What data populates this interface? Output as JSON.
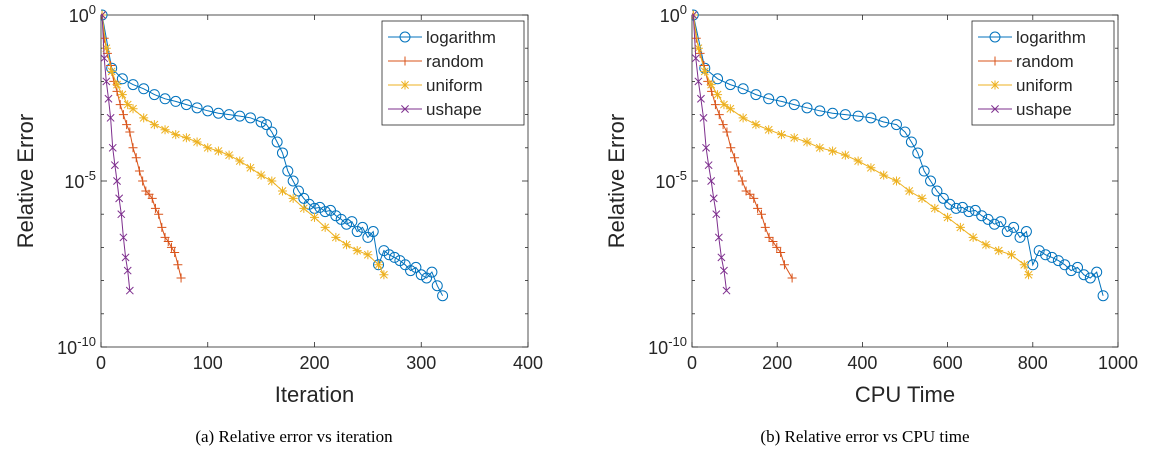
{
  "figure": {
    "captions": [
      "(a)  Relative error vs iteration",
      "(b)  Relative error vs CPU time"
    ]
  },
  "chart_data": [
    {
      "type": "line",
      "yscale": "log",
      "xlabel": "Iteration",
      "ylabel": "Relative Error",
      "xlim": [
        0,
        400
      ],
      "ylim": [
        1e-10,
        1
      ],
      "xticks": [
        "0",
        "100",
        "200",
        "300",
        "400"
      ],
      "ytick_values": [
        1e-10,
        1e-05,
        1
      ],
      "yticks": [
        {
          "base": "10",
          "exp": "-10"
        },
        {
          "base": "10",
          "exp": "-5"
        },
        {
          "base": "10",
          "exp": "0"
        }
      ],
      "grid": false,
      "legend_position": "top-right",
      "series": [
        {
          "name": "logarithm",
          "color": "#0072BD",
          "marker": "circle",
          "x": [
            1,
            10,
            20,
            30,
            40,
            50,
            60,
            70,
            80,
            90,
            100,
            110,
            120,
            130,
            140,
            150,
            155,
            160,
            165,
            170,
            175,
            180,
            185,
            190,
            195,
            200,
            205,
            210,
            215,
            220,
            225,
            230,
            235,
            240,
            245,
            250,
            255,
            260,
            265,
            270,
            275,
            280,
            285,
            290,
            295,
            300,
            305,
            310,
            315,
            320
          ],
          "y": [
            1,
            0.025,
            0.012,
            0.008,
            0.006,
            0.004,
            0.003,
            0.0025,
            0.002,
            0.0016,
            0.0013,
            0.0011,
            0.001,
            0.0009,
            0.0008,
            0.0006,
            0.0005,
            0.0003,
            0.00015,
            7e-05,
            2e-05,
            1e-05,
            5e-06,
            3e-06,
            2e-06,
            1.5e-06,
            1.6e-06,
            1.2e-06,
            1.3e-06,
            9e-07,
            7e-07,
            5e-07,
            6e-07,
            3e-07,
            4e-07,
            2e-07,
            3e-07,
            3e-08,
            8e-08,
            6e-08,
            5e-08,
            4e-08,
            3e-08,
            2e-08,
            2.5e-08,
            1.5e-08,
            1.2e-08,
            1.8e-08,
            7e-09,
            3.5e-09
          ]
        },
        {
          "name": "random",
          "color": "#D95319",
          "marker": "plus",
          "x": [
            1,
            3,
            6,
            9,
            12,
            15,
            18,
            21,
            24,
            27,
            30,
            33,
            36,
            39,
            42,
            45,
            48,
            51,
            54,
            57,
            60,
            63,
            66,
            69,
            72,
            75
          ],
          "y": [
            1,
            0.2,
            0.07,
            0.03,
            0.01,
            0.005,
            0.002,
            0.001,
            0.0005,
            0.0003,
            0.0001,
            5e-05,
            2e-05,
            1e-05,
            5e-06,
            4e-06,
            3e-06,
            1.5e-06,
            1e-06,
            4e-07,
            2e-07,
            1.5e-07,
            1e-07,
            7e-08,
            3e-08,
            1.2e-08
          ]
        },
        {
          "name": "uniform",
          "color": "#EDB120",
          "marker": "star",
          "x": [
            1,
            5,
            10,
            15,
            20,
            25,
            30,
            40,
            50,
            60,
            70,
            80,
            90,
            100,
            110,
            120,
            130,
            140,
            150,
            160,
            170,
            180,
            190,
            200,
            210,
            220,
            230,
            240,
            250,
            260,
            265
          ],
          "y": [
            1,
            0.1,
            0.02,
            0.008,
            0.004,
            0.002,
            0.0015,
            0.0008,
            0.0005,
            0.00035,
            0.00025,
            0.0002,
            0.00015,
            0.0001,
            8e-05,
            6e-05,
            4e-05,
            2.5e-05,
            1.5e-05,
            1e-05,
            5e-06,
            3e-06,
            1.5e-06,
            8e-07,
            4e-07,
            2e-07,
            1.2e-07,
            8e-08,
            6e-08,
            3e-08,
            1.5e-08
          ]
        },
        {
          "name": "ushape",
          "color": "#7E2F8E",
          "marker": "x",
          "x": [
            1,
            3,
            5,
            7,
            9,
            11,
            13,
            15,
            17,
            19,
            21,
            23,
            25,
            27
          ],
          "y": [
            1,
            0.05,
            0.01,
            0.003,
            0.0008,
            0.0001,
            3e-05,
            1e-05,
            3e-06,
            1e-06,
            2e-07,
            5e-08,
            2e-08,
            5e-09
          ]
        }
      ]
    },
    {
      "type": "line",
      "yscale": "log",
      "xlabel": "CPU Time",
      "ylabel": "Relative Error",
      "xlim": [
        0,
        1000
      ],
      "ylim": [
        1e-10,
        1
      ],
      "xticks": [
        "0",
        "200",
        "400",
        "600",
        "800",
        "1000"
      ],
      "ytick_values": [
        1e-10,
        1e-05,
        1
      ],
      "yticks": [
        {
          "base": "10",
          "exp": "-10"
        },
        {
          "base": "10",
          "exp": "-5"
        },
        {
          "base": "10",
          "exp": "0"
        }
      ],
      "grid": false,
      "legend_position": "top-right",
      "series": [
        {
          "name": "logarithm",
          "color": "#0072BD",
          "marker": "circle",
          "x": [
            3,
            30,
            60,
            90,
            120,
            150,
            180,
            210,
            240,
            270,
            300,
            330,
            360,
            390,
            420,
            450,
            480,
            500,
            515,
            530,
            545,
            560,
            575,
            590,
            605,
            620,
            635,
            650,
            665,
            680,
            695,
            710,
            725,
            740,
            755,
            770,
            785,
            800,
            815,
            830,
            845,
            860,
            875,
            890,
            905,
            920,
            935,
            950,
            965
          ],
          "y": [
            1,
            0.025,
            0.012,
            0.008,
            0.006,
            0.004,
            0.003,
            0.0025,
            0.002,
            0.0016,
            0.0013,
            0.0011,
            0.001,
            0.0009,
            0.0008,
            0.0006,
            0.0005,
            0.0003,
            0.00015,
            7e-05,
            2e-05,
            1e-05,
            5e-06,
            3e-06,
            2e-06,
            1.5e-06,
            1.6e-06,
            1.2e-06,
            1.3e-06,
            9e-07,
            7e-07,
            5e-07,
            6e-07,
            3e-07,
            4e-07,
            2e-07,
            3e-07,
            3e-08,
            8e-08,
            6e-08,
            5e-08,
            4e-08,
            3e-08,
            2e-08,
            2.5e-08,
            1.5e-08,
            1.2e-08,
            1.8e-08,
            3.5e-09
          ]
        },
        {
          "name": "random",
          "color": "#D95319",
          "marker": "plus",
          "x": [
            3,
            10,
            19,
            28,
            37,
            46,
            55,
            64,
            73,
            82,
            91,
            100,
            109,
            118,
            127,
            136,
            145,
            154,
            163,
            172,
            181,
            190,
            199,
            208,
            217,
            235
          ],
          "y": [
            1,
            0.2,
            0.07,
            0.03,
            0.01,
            0.005,
            0.002,
            0.001,
            0.0005,
            0.0003,
            0.0001,
            5e-05,
            2e-05,
            1e-05,
            5e-06,
            4e-06,
            3e-06,
            1.5e-06,
            1e-06,
            4e-07,
            2e-07,
            1.5e-07,
            1e-07,
            7e-08,
            3e-08,
            1.2e-08
          ]
        },
        {
          "name": "uniform",
          "color": "#EDB120",
          "marker": "star",
          "x": [
            3,
            15,
            30,
            45,
            60,
            75,
            90,
            120,
            150,
            180,
            210,
            240,
            270,
            300,
            330,
            360,
            390,
            420,
            450,
            480,
            510,
            540,
            570,
            600,
            630,
            660,
            690,
            720,
            750,
            780,
            790
          ],
          "y": [
            1,
            0.1,
            0.02,
            0.008,
            0.004,
            0.002,
            0.0015,
            0.0008,
            0.0005,
            0.00035,
            0.00025,
            0.0002,
            0.00015,
            0.0001,
            8e-05,
            6e-05,
            4e-05,
            2.5e-05,
            1.5e-05,
            1e-05,
            5e-06,
            3e-06,
            1.5e-06,
            8e-07,
            4e-07,
            2e-07,
            1.2e-07,
            8e-08,
            6e-08,
            3e-08,
            1.5e-08
          ]
        },
        {
          "name": "ushape",
          "color": "#7E2F8E",
          "marker": "x",
          "x": [
            3,
            9,
            15,
            21,
            27,
            33,
            39,
            45,
            51,
            57,
            63,
            69,
            75,
            81
          ],
          "y": [
            1,
            0.05,
            0.01,
            0.003,
            0.0008,
            0.0001,
            3e-05,
            1e-05,
            3e-06,
            1e-06,
            2e-07,
            5e-08,
            2e-08,
            5e-09
          ]
        }
      ]
    }
  ]
}
